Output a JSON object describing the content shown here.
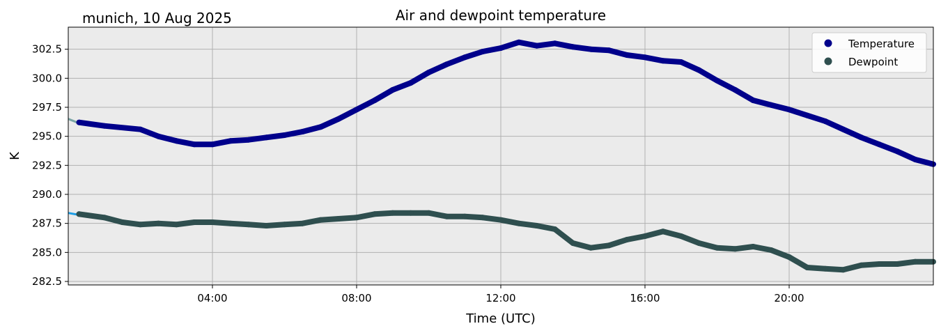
{
  "chart_data": {
    "type": "line",
    "title": "Air and dewpoint temperature",
    "location_label": "munich, 10 Aug 2025",
    "xlabel": "Time (UTC)",
    "ylabel": "K",
    "x_unit": "hours UTC",
    "xlim": [
      0,
      24
    ],
    "ylim": [
      282.2,
      304.4
    ],
    "x_ticks": [
      {
        "hour": 4,
        "label": "04:00"
      },
      {
        "hour": 8,
        "label": "08:00"
      },
      {
        "hour": 12,
        "label": "12:00"
      },
      {
        "hour": 16,
        "label": "16:00"
      },
      {
        "hour": 20,
        "label": "20:00"
      }
    ],
    "y_ticks": [
      {
        "value": 282.5,
        "label": "282.5"
      },
      {
        "value": 285.0,
        "label": "285.0"
      },
      {
        "value": 287.5,
        "label": "287.5"
      },
      {
        "value": 290.0,
        "label": "290.0"
      },
      {
        "value": 292.5,
        "label": "292.5"
      },
      {
        "value": 295.0,
        "label": "295.0"
      },
      {
        "value": 297.5,
        "label": "297.5"
      },
      {
        "value": 300.0,
        "label": "300.0"
      },
      {
        "value": 302.5,
        "label": "302.5"
      }
    ],
    "grid": true,
    "legend_position": "top-right",
    "background_color": "#ebebeb",
    "series": [
      {
        "name": "Temperature",
        "color": "#00008b",
        "raw_color": "#7aa6a6",
        "x": [
          0.0,
          0.3,
          1.0,
          2.0,
          2.5,
          3.0,
          3.5,
          4.0,
          4.5,
          5.0,
          5.5,
          6.0,
          6.5,
          7.0,
          7.5,
          8.0,
          8.5,
          9.0,
          9.5,
          10.0,
          10.5,
          11.0,
          11.5,
          12.0,
          12.5,
          13.0,
          13.5,
          14.0,
          14.5,
          15.0,
          15.5,
          16.0,
          16.5,
          17.0,
          17.5,
          18.0,
          18.5,
          19.0,
          19.5,
          20.0,
          20.5,
          21.0,
          21.5,
          22.0,
          22.5,
          23.0,
          23.5,
          24.0
        ],
        "values": [
          296.5,
          296.2,
          295.9,
          295.6,
          295.0,
          294.6,
          294.3,
          294.3,
          294.6,
          294.7,
          294.9,
          295.1,
          295.4,
          295.8,
          296.5,
          297.3,
          298.1,
          299.0,
          299.6,
          300.5,
          301.2,
          301.8,
          302.3,
          302.6,
          303.1,
          302.8,
          303.0,
          302.7,
          302.5,
          302.4,
          302.0,
          301.8,
          301.5,
          301.4,
          300.7,
          299.8,
          299.0,
          298.1,
          297.7,
          297.3,
          296.8,
          296.3,
          295.6,
          294.9,
          294.3,
          293.7,
          293.0,
          292.6
        ]
      },
      {
        "name": "Dewpoint",
        "color": "#2f4f4f",
        "raw_color": "#1e9fe6",
        "x": [
          0.0,
          0.3,
          1.0,
          1.5,
          2.0,
          2.5,
          3.0,
          3.5,
          4.0,
          4.5,
          5.0,
          5.5,
          6.0,
          6.5,
          7.0,
          7.5,
          8.0,
          8.5,
          9.0,
          9.5,
          10.0,
          10.5,
          11.0,
          11.5,
          12.0,
          12.5,
          13.0,
          13.5,
          14.0,
          14.5,
          15.0,
          15.5,
          16.0,
          16.5,
          17.0,
          17.5,
          18.0,
          18.5,
          19.0,
          19.5,
          20.0,
          20.5,
          21.0,
          21.5,
          22.0,
          22.5,
          23.0,
          23.5,
          24.0
        ],
        "values": [
          288.4,
          288.3,
          288.0,
          287.6,
          287.4,
          287.5,
          287.4,
          287.6,
          287.6,
          287.5,
          287.4,
          287.3,
          287.4,
          287.5,
          287.8,
          287.9,
          288.0,
          288.3,
          288.4,
          288.4,
          288.4,
          288.1,
          288.1,
          288.0,
          287.8,
          287.5,
          287.3,
          287.0,
          285.8,
          285.4,
          285.6,
          286.1,
          286.4,
          286.8,
          286.4,
          285.8,
          285.4,
          285.3,
          285.5,
          285.2,
          284.6,
          283.7,
          283.6,
          283.5,
          283.9,
          284.0,
          284.0,
          284.2,
          284.2
        ]
      }
    ]
  }
}
